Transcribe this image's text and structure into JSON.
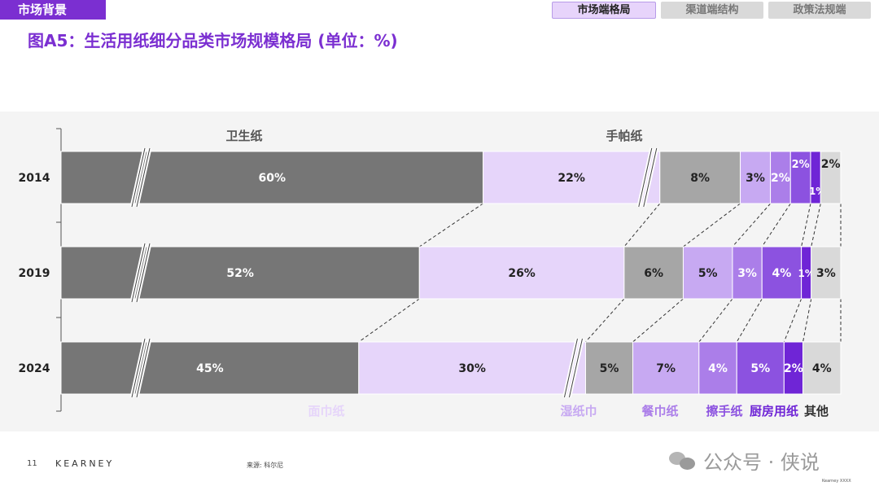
{
  "header": {
    "section_tag": "市场背景",
    "title": "图A5：生活用纸细分品类市场规模格局 (单位：%)",
    "tabs": [
      {
        "label": "市场端格局",
        "active": true
      },
      {
        "label": "渠道端结构",
        "active": false
      },
      {
        "label": "政策法规端",
        "active": false
      }
    ]
  },
  "chart_data": {
    "type": "bar",
    "stacked": true,
    "orientation": "horizontal",
    "categories": [
      "2014",
      "2019",
      "2024"
    ],
    "group_labels_top": [
      "卫生纸",
      "手帕纸"
    ],
    "series": [
      {
        "name": "卫生纸",
        "color": "#767676",
        "text_color": "#ffffff",
        "values": [
          60,
          52,
          45
        ]
      },
      {
        "name": "面巾纸",
        "color": "#e6d5fa",
        "text_color": "#222222",
        "values": [
          22,
          26,
          30
        ]
      },
      {
        "name": "手帕纸",
        "color": "#a6a6a6",
        "text_color": "#222222",
        "values": [
          8,
          6,
          5
        ]
      },
      {
        "name": "湿纸巾",
        "color": "#c7a9f2",
        "text_color": "#222222",
        "values": [
          3,
          5,
          7
        ]
      },
      {
        "name": "餐巾纸",
        "color": "#ab7ee9",
        "text_color": "#ffffff",
        "values": [
          2,
          3,
          4
        ]
      },
      {
        "name": "擦手纸",
        "color": "#8c52e0",
        "text_color": "#ffffff",
        "values": [
          2,
          4,
          5
        ]
      },
      {
        "name": "厨房用纸",
        "color": "#6f25d6",
        "text_color": "#ffffff",
        "values": [
          1,
          1,
          2
        ]
      },
      {
        "name": "其他",
        "color": "#d9d9d9",
        "text_color": "#222222",
        "values": [
          2,
          3,
          4
        ]
      }
    ],
    "bottom_labels": [
      {
        "text": "面巾纸",
        "color": "#e6d5fa"
      },
      {
        "text": "湿纸巾",
        "color": "#c7a9f2"
      },
      {
        "text": "餐巾纸",
        "color": "#ab7ee9"
      },
      {
        "text": "擦手纸",
        "color": "#8c52e0"
      },
      {
        "text": "厨房用纸",
        "color": "#6f25d6"
      },
      {
        "text": "其他",
        "color": "#333333"
      }
    ],
    "axis_break": true
  },
  "footer": {
    "page_number": "11",
    "brand": "KEARNEY",
    "source": "来源: 科尔尼",
    "watermark": "公众号 · 侠说",
    "copyright": "Kearney XXXX"
  }
}
